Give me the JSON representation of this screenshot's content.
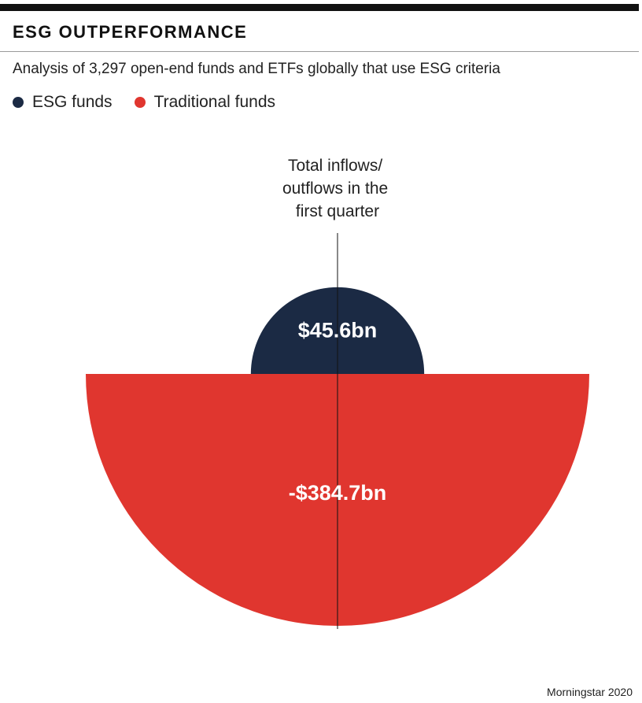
{
  "header": {
    "title": "ESG OUTPERFORMANCE",
    "subtitle": "Analysis of 3,297 open-end funds and ETFs globally that use ESG criteria"
  },
  "legend": [
    {
      "label": "ESG funds",
      "color": "#1b2a44"
    },
    {
      "label": "Traditional funds",
      "color": "#e0362f"
    }
  ],
  "chart_data": {
    "type": "semicircle-area",
    "annotation": [
      "Total inflows/",
      "outflows in the",
      "first quarter"
    ],
    "series": [
      {
        "name": "ESG funds",
        "value": 45.6,
        "label": "$45.6bn",
        "direction": "up",
        "color": "#1b2a44"
      },
      {
        "name": "Traditional funds",
        "value": -384.7,
        "label": "-$384.7bn",
        "direction": "down",
        "color": "#e0362f"
      }
    ]
  },
  "source": "Morningstar 2020"
}
